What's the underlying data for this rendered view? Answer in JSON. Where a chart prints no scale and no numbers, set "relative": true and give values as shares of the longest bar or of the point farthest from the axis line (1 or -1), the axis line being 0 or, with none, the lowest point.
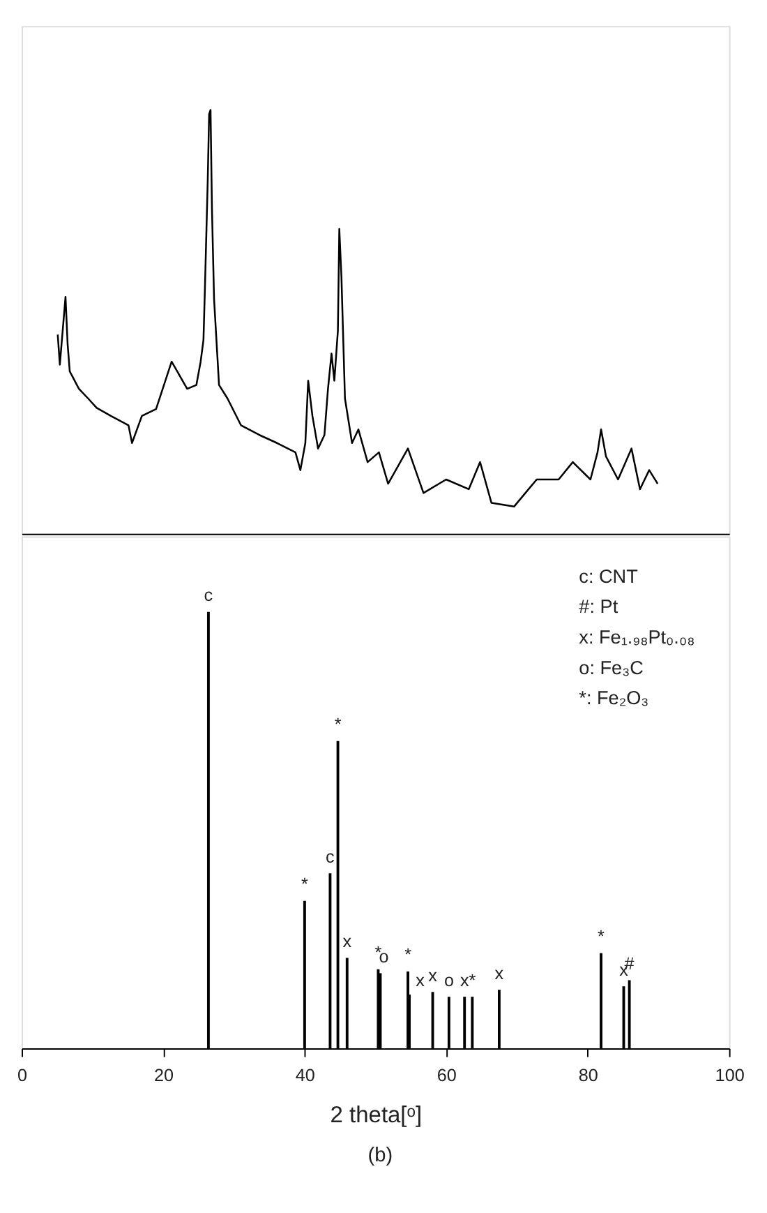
{
  "chart_data": [
    {
      "type": "line",
      "relative": true,
      "xlim": [
        0,
        100
      ],
      "tick_labels": false,
      "series": [
        {
          "color": "#000000",
          "x": [
            5.1,
            5.4,
            6.2,
            6.5,
            6.8,
            8.1,
            9.4,
            10.6,
            12.6,
            15.1,
            15.6,
            17.0,
            19.0,
            21.2,
            23.4,
            24.7,
            25.3,
            25.7,
            25.9,
            26.3,
            26.5,
            26.7,
            26.9,
            27.2,
            27.9,
            29.1,
            31.0,
            33.6,
            36.1,
            38.7,
            39.4,
            40.1,
            40.5,
            41.1,
            41.9,
            42.8,
            43.3,
            43.8,
            44.2,
            44.7,
            44.9,
            45.2,
            45.7,
            46.7,
            47.6,
            48.9,
            50.5,
            51.8,
            54.6,
            56.8,
            60.0,
            63.2,
            64.8,
            66.4,
            69.6,
            72.8,
            75.9,
            77.9,
            80.4,
            81.4,
            81.9,
            82.6,
            84.3,
            86.2,
            87.4,
            88.7,
            89.9
          ],
          "values": [
            0.47,
            0.399,
            0.559,
            0.447,
            0.383,
            0.342,
            0.319,
            0.297,
            0.278,
            0.256,
            0.214,
            0.278,
            0.294,
            0.406,
            0.342,
            0.351,
            0.406,
            0.457,
            0.575,
            0.831,
            0.99,
            1.0,
            0.767,
            0.553,
            0.351,
            0.319,
            0.256,
            0.233,
            0.214,
            0.192,
            0.15,
            0.214,
            0.361,
            0.278,
            0.201,
            0.233,
            0.342,
            0.425,
            0.361,
            0.479,
            0.719,
            0.607,
            0.319,
            0.214,
            0.246,
            0.169,
            0.192,
            0.118,
            0.201,
            0.096,
            0.128,
            0.105,
            0.169,
            0.073,
            0.064,
            0.128,
            0.128,
            0.169,
            0.128,
            0.192,
            0.246,
            0.182,
            0.128,
            0.201,
            0.105,
            0.15,
            0.118
          ]
        }
      ]
    },
    {
      "type": "bar",
      "relative": true,
      "xlim": [
        0,
        100
      ],
      "xticks": [
        0,
        20,
        40,
        60,
        80,
        100
      ],
      "tick_labels": "x",
      "xlabel": "2 theta[ᵒ]",
      "x": [
        26.4,
        40.0,
        43.6,
        44.7,
        46.0,
        50.4,
        50.7,
        54.6,
        54.8,
        58.1,
        60.4,
        62.6,
        63.7,
        67.5,
        81.9,
        85.1,
        85.9
      ],
      "values": [
        1.0,
        0.338,
        0.401,
        0.704,
        0.207,
        0.181,
        0.172,
        0.176,
        0.123,
        0.129,
        0.118,
        0.118,
        0.118,
        0.134,
        0.218,
        0.142,
        0.156
      ],
      "colors": [
        "#000000",
        "#000000",
        "#000000",
        "#000000",
        "#000000",
        "#000000",
        "#000000",
        "#000000",
        "#000000",
        "#000000",
        "#000000",
        "#000000",
        "#000000",
        "#000000",
        "#000000",
        "#000000",
        "#000000"
      ],
      "annotations": [
        {
          "text": "c",
          "x": 26.4,
          "y": 1.0
        },
        {
          "text": "*",
          "x": 40.0,
          "y": 0.338
        },
        {
          "text": "c",
          "x": 43.6,
          "y": 0.401
        },
        {
          "text": "*",
          "x": 44.7,
          "y": 0.704
        },
        {
          "text": "x",
          "x": 46.0,
          "y": 0.207
        },
        {
          "text": "*",
          "x": 50.4,
          "y": 0.181
        },
        {
          "text": "o",
          "x": 51.2,
          "y": 0.172
        },
        {
          "text": "*",
          "x": 54.6,
          "y": 0.176
        },
        {
          "text": "x",
          "x": 54.8,
          "y": 0.123
        },
        {
          "text": "x",
          "x": 58.1,
          "y": 0.129
        },
        {
          "text": "o",
          "x": 60.4,
          "y": 0.118
        },
        {
          "text": "x",
          "x": 62.6,
          "y": 0.118
        },
        {
          "text": "*",
          "x": 63.7,
          "y": 0.118
        },
        {
          "text": "x",
          "x": 67.5,
          "y": 0.134
        },
        {
          "text": "*",
          "x": 81.9,
          "y": 0.218
        },
        {
          "text": "x",
          "x": 85.1,
          "y": 0.142
        },
        {
          "text": "#",
          "x": 85.9,
          "y": 0.156
        },
        "c: CNT",
        "#: Pt",
        "x: Fe₁.₉₈Pt₀.₀₈",
        "o: Fe₃C",
        "*: Fe₂O₃",
        "(b)"
      ]
    }
  ]
}
